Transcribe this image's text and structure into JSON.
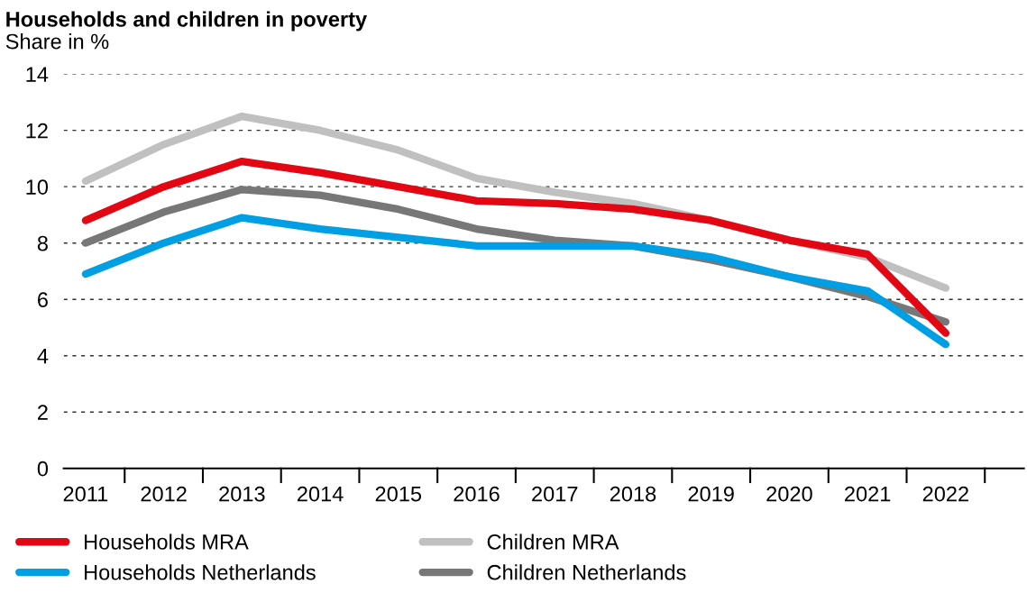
{
  "chart_data": {
    "type": "line",
    "title": "Households and children in poverty",
    "subtitle": "Share in %",
    "categories": [
      "2011",
      "2012",
      "2013",
      "2014",
      "2015",
      "2016",
      "2017",
      "2018",
      "2019",
      "2020",
      "2021",
      "2022"
    ],
    "series": [
      {
        "name": "Households MRA",
        "color": "#e30613",
        "values": [
          8.8,
          10.0,
          10.9,
          10.5,
          10.0,
          9.5,
          9.4,
          9.2,
          8.8,
          8.1,
          7.6,
          4.8
        ]
      },
      {
        "name": "Households Netherlands",
        "color": "#009fe3",
        "values": [
          6.9,
          8.0,
          8.9,
          8.5,
          8.2,
          7.9,
          7.9,
          7.9,
          7.5,
          6.8,
          6.3,
          4.4
        ]
      },
      {
        "name": "Children MRA",
        "color": "#c0c0c0",
        "values": [
          10.2,
          11.5,
          12.5,
          12.0,
          11.3,
          10.3,
          9.8,
          9.4,
          8.8,
          8.1,
          7.5,
          6.4
        ]
      },
      {
        "name": "Children Netherlands",
        "color": "#777777",
        "values": [
          8.0,
          9.1,
          9.9,
          9.7,
          9.2,
          8.5,
          8.1,
          7.9,
          7.4,
          6.8,
          6.1,
          5.2
        ]
      }
    ],
    "ylim": [
      0,
      14
    ],
    "yticks": [
      0,
      2,
      4,
      6,
      8,
      10,
      12,
      14
    ],
    "grid": "y",
    "legend": "bottom",
    "marker": "none",
    "line_style": "solid"
  }
}
